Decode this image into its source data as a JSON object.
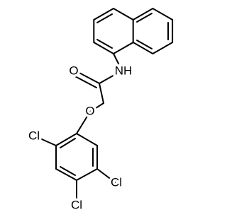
{
  "atoms": [
    {
      "label": "O"
    },
    {
      "label": "NH"
    },
    {
      "label": "O"
    },
    {
      "label": "Cl"
    },
    {
      "label": "Cl"
    },
    {
      "label": "Cl"
    }
  ]
}
